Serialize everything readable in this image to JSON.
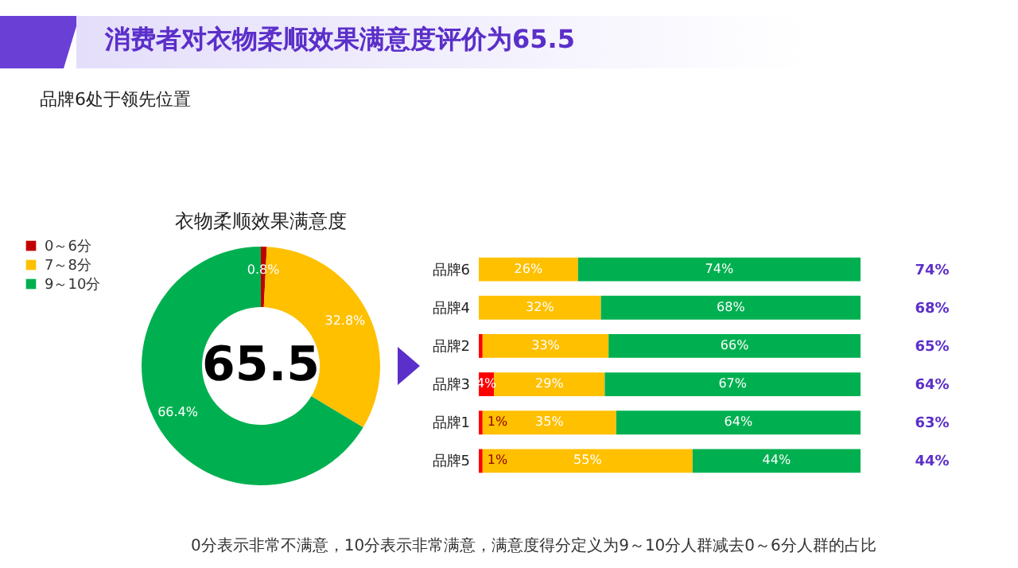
{
  "chart_data": [
    {
      "type": "other",
      "title": "消费者对衣物柔顺效果满意度评价为65.5",
      "subtitle": "品牌6处于领先位置",
      "annotations": [
        "0分表示非常不满意，10分表示非常满意，满意度得分定义为9～10分人群减去0～6分人群的占比"
      ]
    },
    {
      "type": "donut",
      "title": "衣物柔顺效果满意度",
      "categories": [
        "0～6分",
        "7～8分",
        "9～10分"
      ],
      "values": [
        0.8,
        32.8,
        66.4
      ],
      "colors": [
        "#c00000",
        "#ffc000",
        "#00b050"
      ],
      "value_labels": [
        "0.8%",
        "32.8%",
        "66.4%"
      ],
      "legend": "left",
      "annotations": [
        "65.5"
      ]
    },
    {
      "type": "bar",
      "orientation": "horizontal",
      "stacked": true,
      "categories": [
        "品牌6",
        "品牌4",
        "品牌2",
        "品牌3",
        "品牌1",
        "品牌5"
      ],
      "xlim": [
        0,
        100
      ],
      "tick_labels": "y",
      "series": [
        {
          "color": "#ff0000",
          "values": [
            0,
            0,
            1,
            4,
            1,
            1
          ],
          "value_labels": [
            null,
            null,
            null,
            "4%",
            "1%",
            "1%"
          ]
        },
        {
          "color": "#ffc000",
          "values": [
            26,
            32,
            33,
            29,
            35,
            55
          ],
          "value_labels": [
            "26%",
            "32%",
            "33%",
            "29%",
            "35%",
            "55%"
          ]
        },
        {
          "color": "#00b050",
          "values": [
            74,
            68,
            66,
            67,
            64,
            44
          ],
          "value_labels": [
            "74%",
            "68%",
            "66%",
            "67%",
            "64%",
            "44%"
          ]
        }
      ],
      "annotations": [
        "74%",
        "68%",
        "65%",
        "64%",
        "63%",
        "44%"
      ]
    }
  ]
}
